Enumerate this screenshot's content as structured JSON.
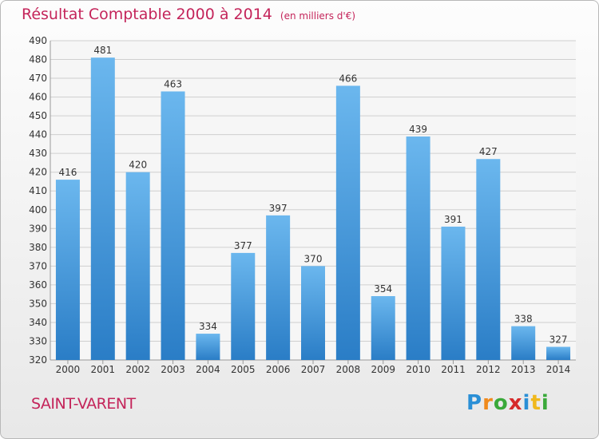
{
  "title": "Résultat Comptable 2000 à 2014",
  "subtitle": "(en milliers d'€)",
  "location": "SAINT-VARENT",
  "brand": {
    "letters": [
      "P",
      "r",
      "o",
      "x",
      "i",
      "t",
      "i"
    ],
    "colors": [
      "#2a8fd6",
      "#f08a1c",
      "#3aa93a",
      "#d62a2a",
      "#2a8fd6",
      "#f0b81c",
      "#3aa93a"
    ]
  },
  "colors": {
    "title": "#c4245a",
    "bar_light": "#6bb7ee",
    "bar_dark": "#2a7dc6",
    "grid": "#cfcfcf"
  },
  "chart_data": {
    "type": "bar",
    "categories": [
      "2000",
      "2001",
      "2002",
      "2003",
      "2004",
      "2005",
      "2006",
      "2007",
      "2008",
      "2009",
      "2010",
      "2011",
      "2012",
      "2013",
      "2014"
    ],
    "values": [
      416,
      481,
      420,
      463,
      334,
      377,
      397,
      370,
      466,
      354,
      439,
      391,
      427,
      338,
      327
    ],
    "ylim": [
      320,
      490
    ],
    "yticks": [
      320,
      330,
      340,
      350,
      360,
      370,
      380,
      390,
      400,
      410,
      420,
      430,
      440,
      450,
      460,
      470,
      480,
      490
    ],
    "grid": true,
    "xlabel": "",
    "ylabel": ""
  }
}
